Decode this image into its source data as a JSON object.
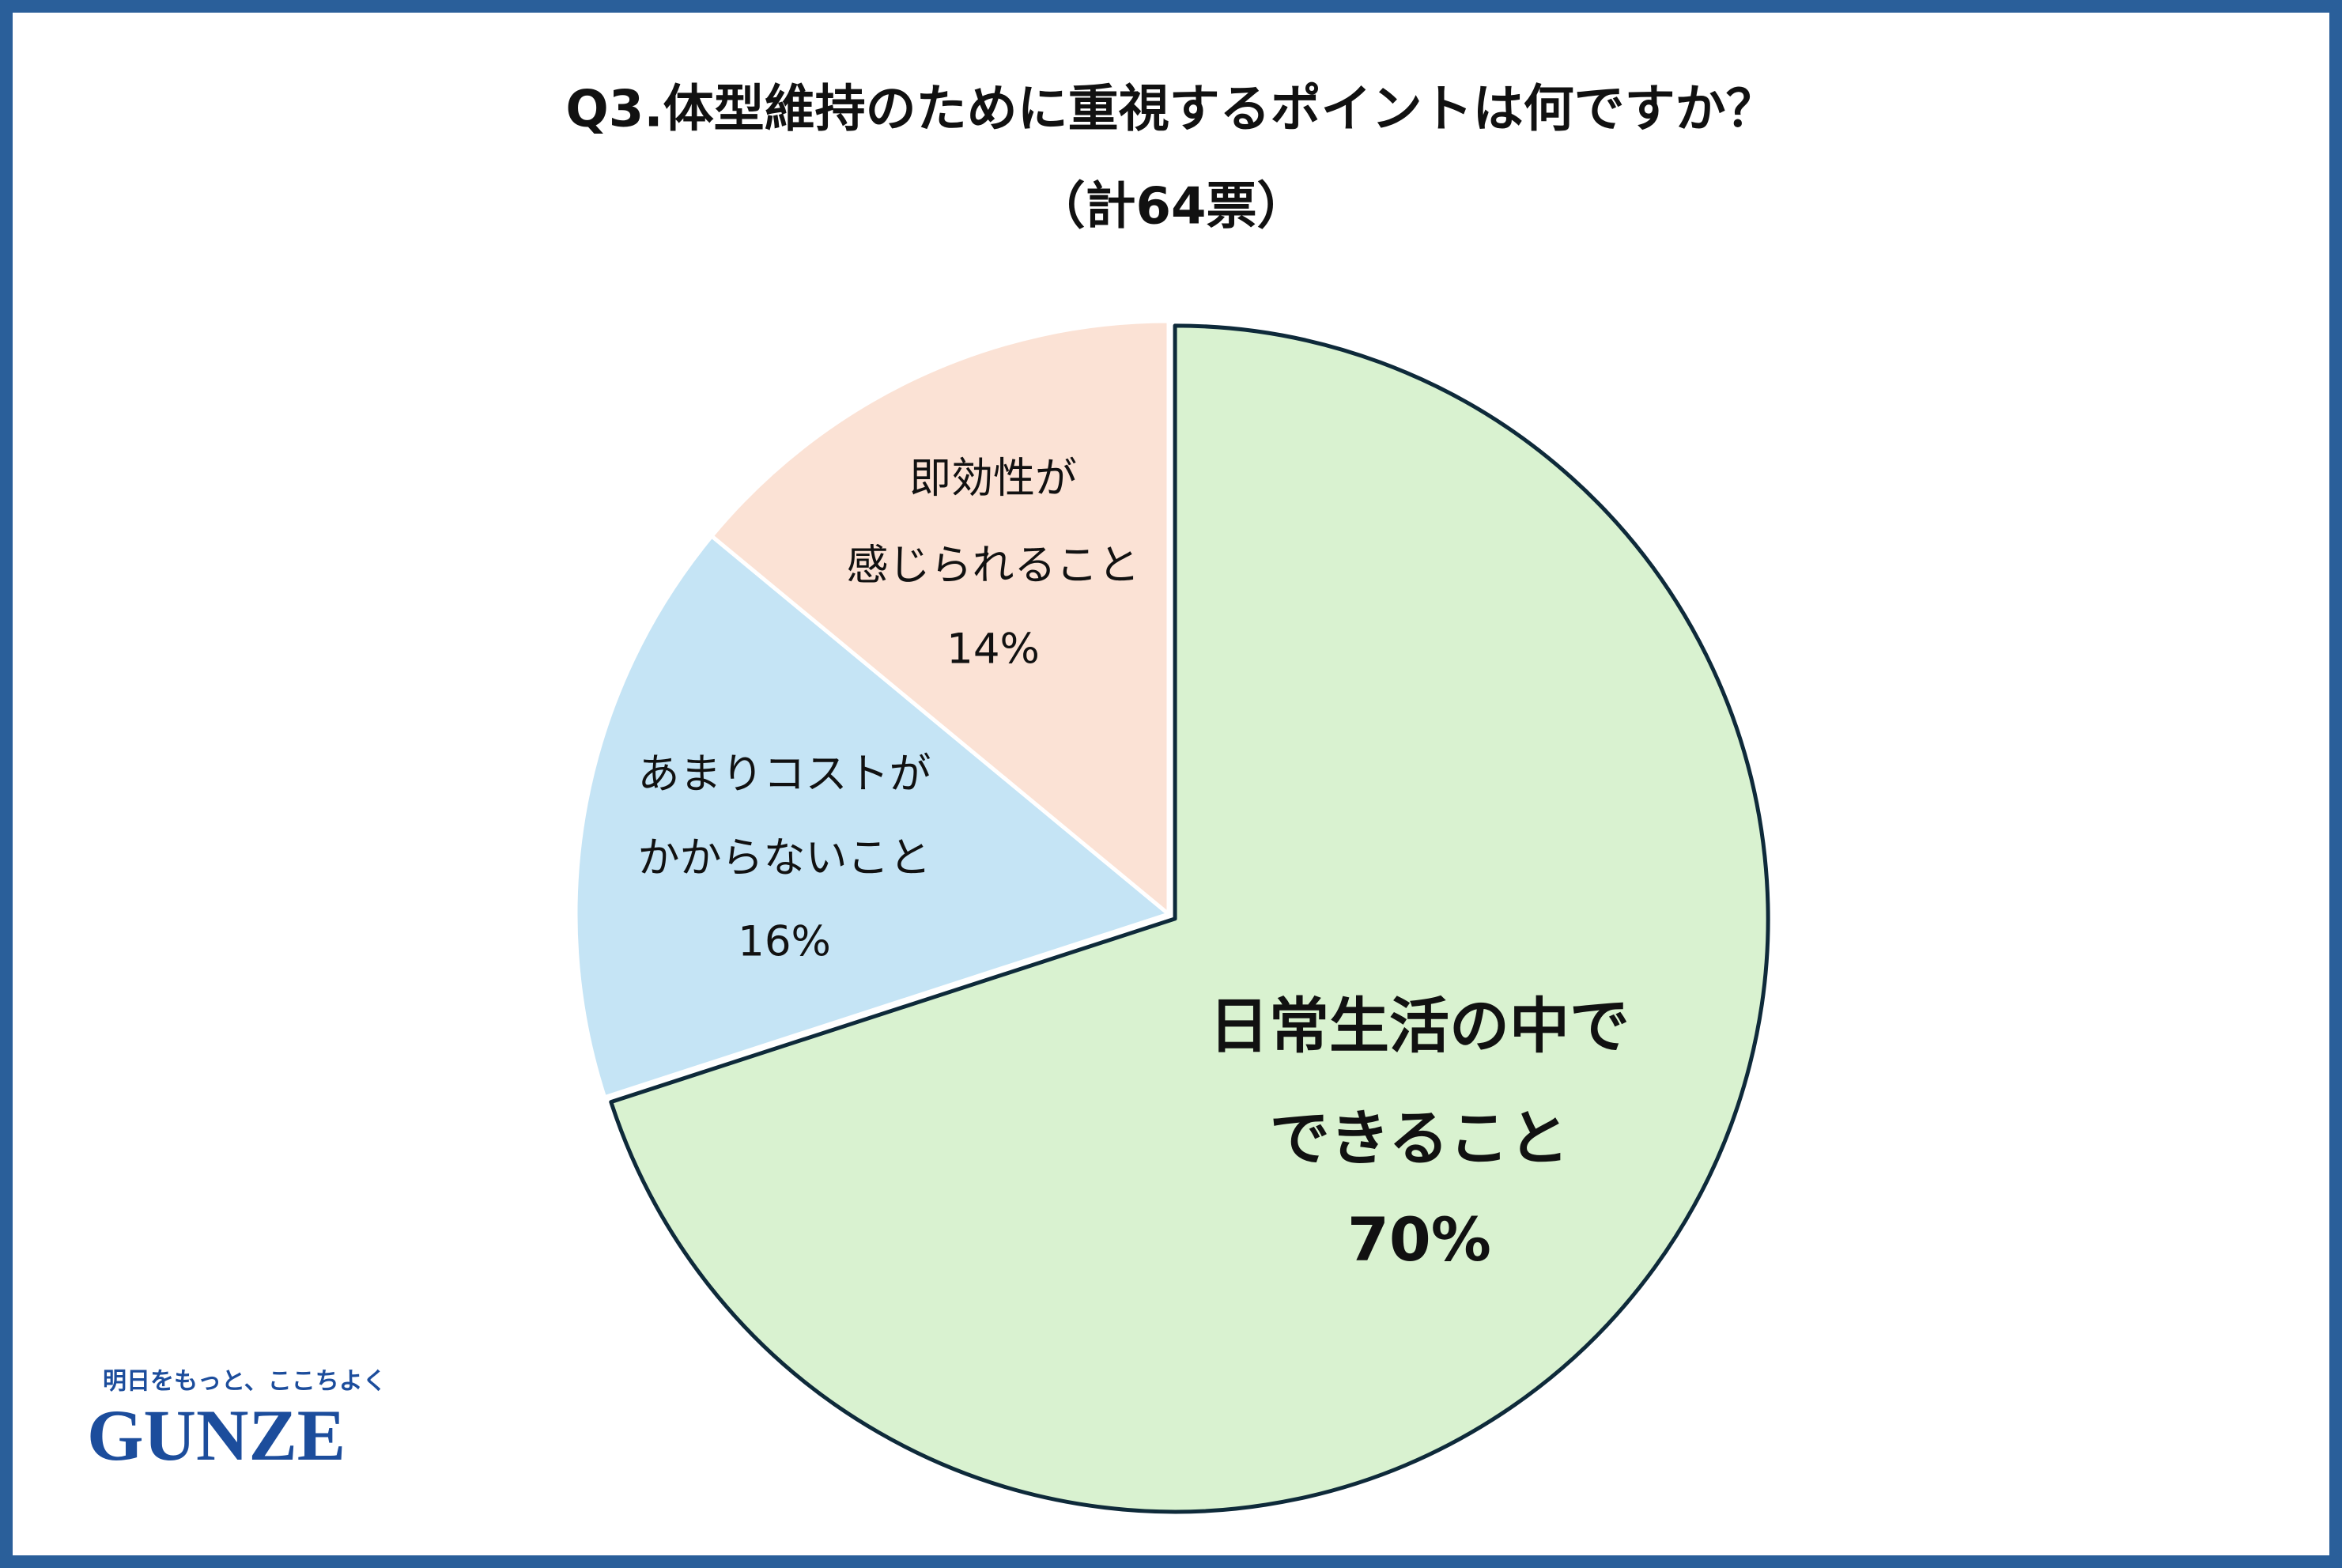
{
  "chart_data": {
    "type": "pie",
    "title": "Q3.体型維持のために重視するポイントは何ですか？",
    "subtitle": "（計64票）",
    "categories": [
      [
        "日常生活の中で",
        "できること"
      ],
      [
        "あまりコストが",
        "かからないこと"
      ],
      [
        "即効性が",
        "感じられること"
      ]
    ],
    "values": [
      70,
      16,
      14
    ],
    "value_labels": [
      "70%",
      "16%",
      "14%"
    ],
    "colors": [
      "#d9f2d0",
      "#c5e4f5",
      "#fbe2d5"
    ]
  },
  "logo": {
    "tagline": "明日をもっと、ここちよく",
    "name": "GUNZE"
  }
}
